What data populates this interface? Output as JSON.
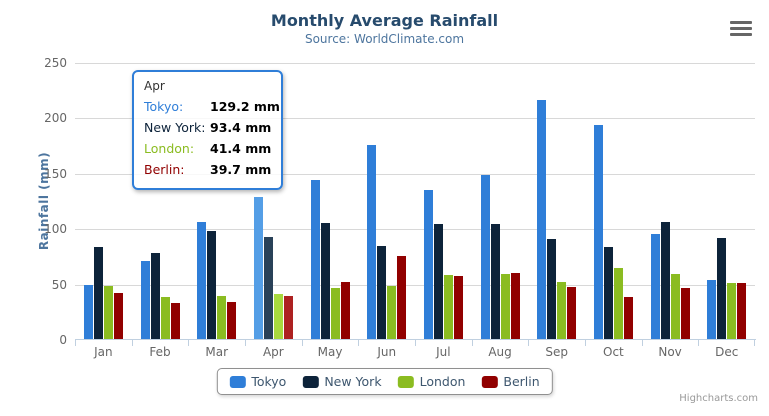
{
  "header": {
    "title": "Monthly Average Rainfall",
    "subtitle": "Source: WorldClimate.com"
  },
  "chart_data": {
    "type": "bar",
    "title": "Monthly Average Rainfall",
    "subtitle": "Source: WorldClimate.com",
    "categories": [
      "Jan",
      "Feb",
      "Mar",
      "Apr",
      "May",
      "Jun",
      "Jul",
      "Aug",
      "Sep",
      "Oct",
      "Nov",
      "Dec"
    ],
    "series": [
      {
        "name": "Tokyo",
        "color": "#2f7ed8",
        "hover_color": "#549ee6",
        "values": [
          49.9,
          71.5,
          106.4,
          129.2,
          144.0,
          176.0,
          135.6,
          148.5,
          216.4,
          194.1,
          95.6,
          54.4
        ]
      },
      {
        "name": "New York",
        "color": "#0d233a",
        "hover_color": "#294158",
        "values": [
          83.6,
          78.8,
          98.5,
          93.4,
          106.0,
          84.5,
          105.0,
          104.3,
          91.2,
          83.5,
          106.6,
          92.3
        ]
      },
      {
        "name": "London",
        "color": "#8bbc21",
        "hover_color": "#a8d93e",
        "values": [
          48.9,
          38.8,
          39.3,
          41.4,
          47.0,
          48.3,
          59.0,
          59.6,
          52.4,
          65.2,
          59.3,
          51.2
        ]
      },
      {
        "name": "Berlin",
        "color": "#910000",
        "hover_color": "#ad2121",
        "values": [
          42.4,
          33.2,
          34.5,
          39.7,
          52.6,
          75.5,
          57.4,
          60.4,
          47.6,
          39.1,
          46.8,
          51.1
        ]
      }
    ],
    "xlabel": "",
    "ylabel": "Rainfall (mm)",
    "ylim": [
      0,
      250
    ],
    "yticks": [
      0,
      50,
      100,
      150,
      200,
      250
    ],
    "grid": true,
    "legend_position": "bottom",
    "hovered_category": "Apr",
    "hovered_index": 3
  },
  "tooltip": {
    "header": "Apr",
    "rows": [
      {
        "name": "Tokyo:",
        "value": "129.2 mm",
        "color": "#2f7ed8"
      },
      {
        "name": "New York:",
        "value": "93.4 mm",
        "color": "#0d233a"
      },
      {
        "name": "London:",
        "value": "41.4 mm",
        "color": "#8bbc21"
      },
      {
        "name": "Berlin:",
        "value": "39.7 mm",
        "color": "#910000"
      }
    ],
    "border_color": "#2f7ed8"
  },
  "legend": {
    "items": [
      {
        "label": "Tokyo",
        "color": "#2f7ed8"
      },
      {
        "label": "New York",
        "color": "#0d233a"
      },
      {
        "label": "London",
        "color": "#8bbc21"
      },
      {
        "label": "Berlin",
        "color": "#910000"
      }
    ]
  },
  "credits": {
    "text": "Highcharts.com"
  },
  "colors": {
    "title": "#274b6d",
    "subtitle": "#4d759e",
    "axis_title": "#4d759e",
    "tick_label": "#666666",
    "axis_line": "#c0d0e0",
    "grid_line": "#d8d8d8"
  }
}
